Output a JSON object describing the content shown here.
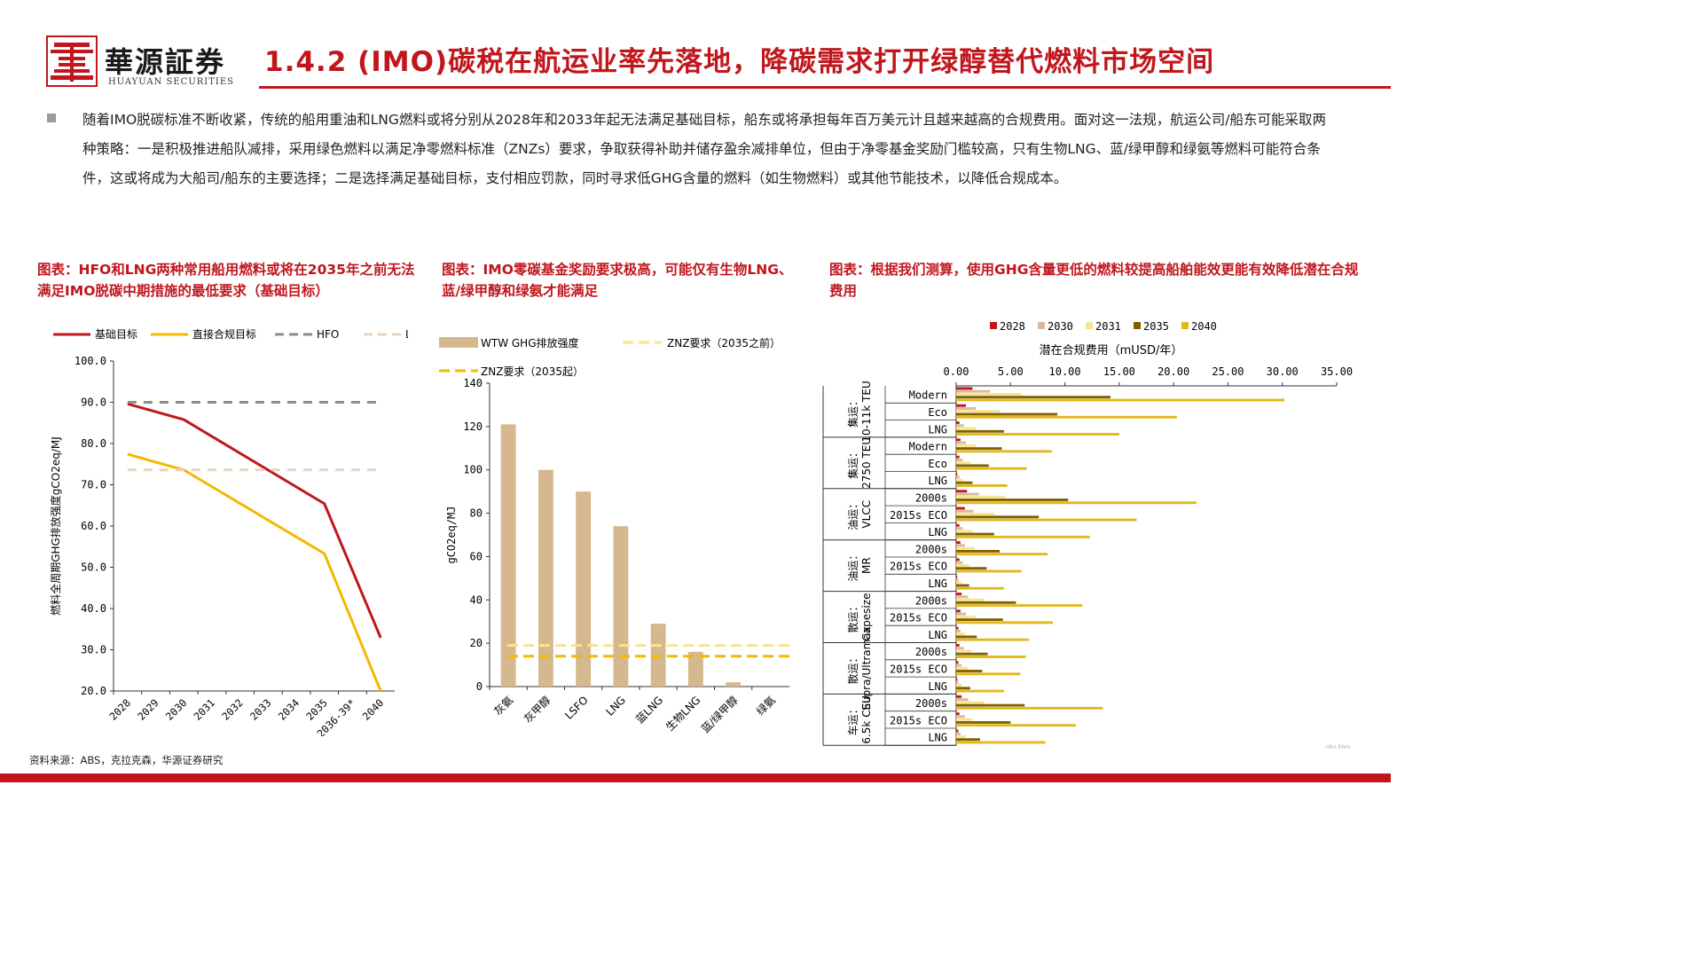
{
  "brand": {
    "cn": "華源証券",
    "en": "HUAYUAN SECURITIES",
    "color": "#c0171d"
  },
  "title": "1.4.2 (IMO)碳税在航运业率先落地，降碳需求打开绿醇替代燃料市场空间",
  "paragraph": "随着IMO脱碳标准不断收紧，传统的船用重油和LNG燃料或将分别从2028年和2033年起无法满足基础目标，船东或将承担每年百万美元计且越来越高的合规费用。面对这一法规，航运公司/船东可能采取两种策略：一是积极推进船队减排，采用绿色燃料以满足净零燃料标准（ZNZs）要求，争取获得补助并储存盈余减排单位，但由于净零基金奖励门槛较高，只有生物LNG、蓝/绿甲醇和绿氨等燃料可能符合条件，这或将成为大船司/船东的主要选择；二是选择满足基础目标，支付相应罚款，同时寻求低GHG含量的燃料（如生物燃料）或其他节能技术，以降低合规成本。",
  "captions": {
    "c1": "图表：HFO和LNG两种常用船用燃料或将在2035年之前无法满足IMO脱碳中期措施的最低要求（基础目标）",
    "c2": "图表：IMO零碳基金奖励要求极高，可能仅有生物LNG、蓝/绿甲醇和绿氨才能满足",
    "c3": "图表：根据我们测算，使用GHG含量更低的燃料较提高船舶能效更能有效降低潜在合规费用"
  },
  "source": "资料来源：ABS，克拉克森，华源证券研究",
  "watermark": "nfm hhm",
  "chart_data": [
    {
      "type": "line",
      "title": "",
      "ylabel": "燃料全周期GHG排放强度gCO2eq/MJ",
      "ylim": [
        20,
        100
      ],
      "yticks": [
        "20.0",
        "30.0",
        "40.0",
        "50.0",
        "60.0",
        "70.0",
        "80.0",
        "90.0",
        "100.0"
      ],
      "categories": [
        "2028",
        "2029",
        "2030",
        "2031",
        "2032",
        "2033",
        "2034",
        "2035",
        "2036-39*",
        "2040"
      ],
      "series": [
        {
          "name": "基础目标",
          "color": "#c0171d",
          "style": "solid",
          "values": [
            89.6,
            null,
            85.8,
            null,
            null,
            null,
            null,
            65.4,
            null,
            32.9
          ]
        },
        {
          "name": "直接合规目标",
          "color": "#f5b800",
          "style": "solid",
          "values": [
            77.4,
            null,
            73.6,
            null,
            null,
            null,
            null,
            53.3,
            null,
            20.0
          ]
        },
        {
          "name": "HFO",
          "color": "#8c8c8c",
          "style": "dashed",
          "values": [
            90,
            90,
            90,
            90,
            90,
            90,
            90,
            90,
            90,
            90
          ]
        },
        {
          "name": "LNG",
          "color": "#e8d3bf",
          "style": "dashed",
          "values": [
            73.6,
            73.6,
            73.6,
            73.6,
            73.6,
            73.6,
            73.6,
            73.6,
            73.6,
            73.6
          ]
        }
      ],
      "legend": "top"
    },
    {
      "type": "bar",
      "title": "",
      "ylabel": "gCO2eq/MJ",
      "ylim": [
        0,
        140
      ],
      "yticks": [
        "0",
        "20",
        "40",
        "60",
        "80",
        "100",
        "120",
        "140"
      ],
      "categories": [
        "灰氨",
        "灰甲醇",
        "LSFO",
        "LNG",
        "蓝LNG",
        "生物LNG",
        "蓝/绿甲醇",
        "绿氨"
      ],
      "series": [
        {
          "name": "WTW GHG排放强度",
          "color": "#d6b88e",
          "values": [
            121,
            100,
            90,
            74,
            29,
            16,
            2,
            0
          ]
        }
      ],
      "reference_lines": [
        {
          "name": "ZNZ要求（2035之前）",
          "value": 19.0,
          "color": "#f7e58c"
        },
        {
          "name": "ZNZ要求（2035起）",
          "value": 14.0,
          "color": "#f5b800"
        }
      ],
      "legend": "top"
    },
    {
      "type": "bar",
      "orientation": "horizontal",
      "title": "潜在合规费用（mUSD/年）",
      "xlim": [
        0,
        35
      ],
      "xticks": [
        "0.00",
        "5.00",
        "10.00",
        "15.00",
        "20.00",
        "25.00",
        "30.00",
        "35.00"
      ],
      "series_names": [
        "2028",
        "2030",
        "2031",
        "2035",
        "2040"
      ],
      "series_colors": [
        "#c0171d",
        "#d9b99b",
        "#f6e48f",
        "#7f6000",
        "#e2b81e"
      ],
      "groups": [
        {
          "label": "集运：10-11k TEU",
          "rows": [
            {
              "name": "Modern",
              "values": [
                1.5,
                3.1,
                6.0,
                14.2,
                30.2
              ]
            },
            {
              "name": "Eco",
              "values": [
                0.9,
                1.8,
                4.0,
                9.3,
                20.3
              ]
            },
            {
              "name": "LNG",
              "values": [
                0.3,
                0.7,
                1.8,
                4.4,
                15.0
              ]
            }
          ]
        },
        {
          "label": "集运：2750 TEU",
          "rows": [
            {
              "name": "Modern",
              "values": [
                0.4,
                0.9,
                1.8,
                4.2,
                8.8
              ]
            },
            {
              "name": "Eco",
              "values": [
                0.3,
                0.6,
                1.3,
                3.0,
                6.5
              ]
            },
            {
              "name": "LNG",
              "values": [
                0.1,
                0.3,
                0.6,
                1.5,
                4.7
              ]
            }
          ]
        },
        {
          "label": "油运：VLCC",
          "rows": [
            {
              "name": "2000s",
              "values": [
                1.0,
                2.1,
                4.5,
                10.3,
                22.1
              ]
            },
            {
              "name": "2015s ECO",
              "values": [
                0.8,
                1.6,
                3.5,
                7.6,
                16.6
              ]
            },
            {
              "name": "LNG",
              "values": [
                0.3,
                0.6,
                1.5,
                3.5,
                12.3
              ]
            }
          ]
        },
        {
          "label": "油运：MR",
          "rows": [
            {
              "name": "2000s",
              "values": [
                0.4,
                0.8,
                1.7,
                4.0,
                8.4
              ]
            },
            {
              "name": "2015s ECO",
              "values": [
                0.3,
                0.6,
                1.2,
                2.8,
                6.0
              ]
            },
            {
              "name": "LNG",
              "values": [
                0.1,
                0.2,
                0.5,
                1.2,
                4.4
              ]
            }
          ]
        },
        {
          "label": "散运：Capesize",
          "rows": [
            {
              "name": "2000s",
              "values": [
                0.5,
                1.1,
                2.6,
                5.5,
                11.6
              ]
            },
            {
              "name": "2015s ECO",
              "values": [
                0.4,
                0.9,
                1.8,
                4.3,
                8.9
              ]
            },
            {
              "name": "LNG",
              "values": [
                0.2,
                0.4,
                0.8,
                1.9,
                6.7
              ]
            }
          ]
        },
        {
          "label": "散运：Supra/Ultramax",
          "rows": [
            {
              "name": "2000s",
              "values": [
                0.3,
                0.7,
                1.4,
                2.9,
                6.4
              ]
            },
            {
              "name": "2015s ECO",
              "values": [
                0.2,
                0.5,
                1.1,
                2.4,
                5.9
              ]
            },
            {
              "name": "LNG",
              "values": [
                0.1,
                0.2,
                0.5,
                1.3,
                4.4
              ]
            }
          ]
        },
        {
          "label": "车运：6.5k CEU",
          "rows": [
            {
              "name": "2000s",
              "values": [
                0.5,
                1.1,
                2.6,
                6.3,
                13.5
              ]
            },
            {
              "name": "2015s ECO",
              "values": [
                0.3,
                0.8,
                1.5,
                5.0,
                11.0
              ]
            },
            {
              "name": "LNG",
              "values": [
                0.2,
                0.4,
                0.9,
                2.2,
                8.2
              ]
            }
          ]
        }
      ],
      "legend": "top"
    }
  ]
}
